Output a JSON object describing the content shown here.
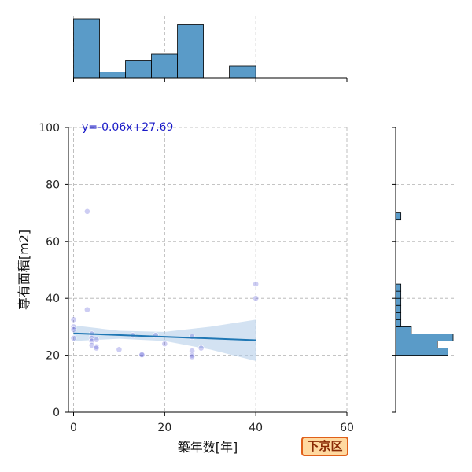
{
  "chart_data": {
    "type": "scatter",
    "title": "",
    "xlabel": "築年数[年]",
    "ylabel": "専有面積[m2]",
    "xlim": [
      -1,
      60
    ],
    "ylim": [
      0,
      100
    ],
    "xticks": [
      0,
      20,
      40,
      60
    ],
    "yticks": [
      0,
      20,
      40,
      60,
      80,
      100
    ],
    "grid": true,
    "annotation": "y=-0.06x+27.69",
    "region_badge": "下京区",
    "regression": {
      "slope": -0.06,
      "intercept": 27.69,
      "x_range": [
        0,
        40
      ]
    },
    "confidence_band": [
      {
        "x": 0,
        "lower": 25.0,
        "upper": 30.5
      },
      {
        "x": 10,
        "lower": 25.8,
        "upper": 28.6
      },
      {
        "x": 20,
        "lower": 25.0,
        "upper": 28.2
      },
      {
        "x": 30,
        "lower": 22.0,
        "upper": 30.0
      },
      {
        "x": 40,
        "lower": 18.0,
        "upper": 32.5
      }
    ],
    "points": [
      {
        "x": 0,
        "y": 30.0
      },
      {
        "x": 0,
        "y": 29.0
      },
      {
        "x": 0,
        "y": 32.5
      },
      {
        "x": 0,
        "y": 26.0
      },
      {
        "x": 3,
        "y": 70.5
      },
      {
        "x": 3,
        "y": 36.0
      },
      {
        "x": 4,
        "y": 27.5
      },
      {
        "x": 4,
        "y": 26.0
      },
      {
        "x": 4,
        "y": 25.0
      },
      {
        "x": 4,
        "y": 23.5
      },
      {
        "x": 5,
        "y": 23.0
      },
      {
        "x": 5,
        "y": 22.5
      },
      {
        "x": 5,
        "y": 25.5
      },
      {
        "x": 10,
        "y": 22.0
      },
      {
        "x": 13,
        "y": 27.0
      },
      {
        "x": 15,
        "y": 20.0
      },
      {
        "x": 15,
        "y": 20.2
      },
      {
        "x": 18,
        "y": 27.0
      },
      {
        "x": 20,
        "y": 24.0
      },
      {
        "x": 26,
        "y": 26.5
      },
      {
        "x": 26,
        "y": 21.5
      },
      {
        "x": 26,
        "y": 20.0
      },
      {
        "x": 26,
        "y": 19.5
      },
      {
        "x": 28,
        "y": 22.5
      },
      {
        "x": 40,
        "y": 45.0
      },
      {
        "x": 40,
        "y": 40.0
      }
    ],
    "x_histogram": {
      "bin_edges": [
        0,
        5.7,
        11.4,
        17.1,
        22.8,
        28.5,
        34.2,
        40
      ],
      "counts": [
        10,
        1,
        3,
        4,
        9,
        0,
        2
      ],
      "note_counts_scale": "relative"
    },
    "y_histogram": {
      "bin_edges": [
        20,
        22.5,
        25,
        27.5,
        30,
        32.5,
        35,
        37.5,
        40,
        42.5,
        45,
        67.5,
        70,
        72.5
      ],
      "counts": [
        10,
        8,
        11,
        3,
        1,
        1,
        1,
        1,
        1,
        1,
        0,
        1,
        0
      ],
      "note_counts_scale": "relative"
    },
    "colors": {
      "point": "#5b5bd6",
      "line": "#1f77b4",
      "band": "#aecbe8",
      "bar": "#5a9bc8",
      "bar_edge": "#000000",
      "grid": "#b0b0b0"
    }
  }
}
